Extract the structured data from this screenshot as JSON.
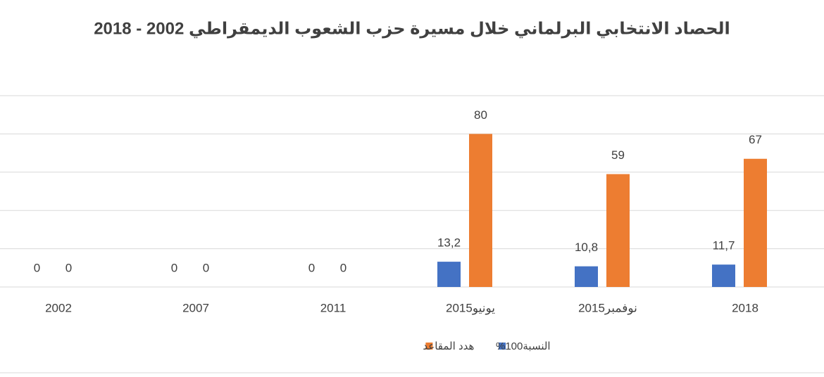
{
  "chart_data": {
    "type": "bar",
    "title": "الحصاد الانتخابي البرلماني خلال مسيرة حزب الشعوب الديمقراطي 2002 - 2018",
    "categories": [
      "2002",
      "2007",
      "2011",
      "يونيو2015",
      "نوفمبر2015",
      "2018"
    ],
    "series": [
      {
        "name": "النسبة100%",
        "color": "#4472c4",
        "values": [
          0,
          0,
          0,
          13.2,
          10.8,
          11.7
        ],
        "value_labels": [
          "0",
          "0",
          "0",
          "13,2",
          "10,8",
          "11,7"
        ]
      },
      {
        "name": "هدد المقاعد",
        "color": "#ed7d31",
        "values": [
          0,
          0,
          0,
          80,
          59,
          67
        ]
      }
    ],
    "ylim": [
      0,
      100
    ],
    "yticks": [
      0,
      20,
      40,
      60,
      80,
      100
    ],
    "grid": true
  }
}
